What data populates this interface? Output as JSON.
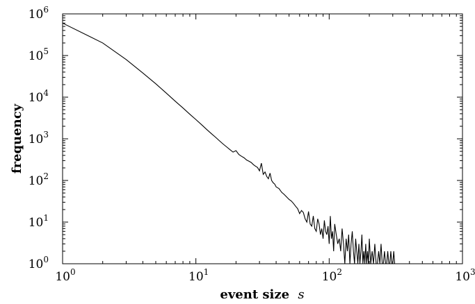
{
  "chart_data": {
    "type": "line",
    "title": "",
    "xlabel": "event size",
    "xlabel_var": "s",
    "ylabel": "frequency",
    "x_scale": "log",
    "y_scale": "log",
    "xlim": [
      1,
      1000
    ],
    "ylim": [
      1,
      1000000
    ],
    "grid": false,
    "legend": "none",
    "x_ticks": [
      {
        "base": "10",
        "exp": "0"
      },
      {
        "base": "10",
        "exp": "1"
      },
      {
        "base": "10",
        "exp": "2"
      },
      {
        "base": "10",
        "exp": "3"
      }
    ],
    "y_ticks": [
      {
        "base": "10",
        "exp": "0"
      },
      {
        "base": "10",
        "exp": "1"
      },
      {
        "base": "10",
        "exp": "2"
      },
      {
        "base": "10",
        "exp": "3"
      },
      {
        "base": "10",
        "exp": "4"
      },
      {
        "base": "10",
        "exp": "5"
      },
      {
        "base": "10",
        "exp": "6"
      }
    ],
    "line_color": "#000000",
    "series": [
      {
        "x": [
          1,
          2,
          3,
          4,
          5,
          6,
          7,
          8,
          9,
          10,
          11,
          12,
          13,
          14,
          15,
          16,
          17,
          18,
          19,
          20,
          21,
          22,
          23,
          24,
          25,
          26,
          27,
          28,
          29,
          30,
          31,
          32,
          33,
          34,
          35,
          36,
          37,
          38,
          39,
          40,
          42,
          44,
          46,
          48,
          50,
          52,
          54,
          56,
          58,
          60,
          62,
          64,
          66,
          68,
          70,
          72,
          74,
          76,
          78,
          80,
          82,
          84,
          86,
          88,
          90,
          92,
          94,
          96,
          98,
          100,
          102,
          104,
          106,
          108,
          110,
          113,
          116,
          119,
          122,
          125,
          128,
          131,
          134,
          137,
          140,
          143,
          146,
          149,
          152,
          155,
          158,
          161,
          164,
          167,
          170,
          173,
          176,
          179,
          182,
          185,
          188,
          191,
          194,
          197,
          200,
          205,
          210,
          215,
          220,
          225,
          230,
          235,
          240,
          245,
          250,
          255,
          260,
          265,
          270,
          275,
          280,
          285,
          290,
          295,
          300,
          305,
          310
        ],
        "y": [
          600000,
          200000,
          80000,
          38000,
          21000,
          12500,
          8000,
          5500,
          3900,
          2900,
          2200,
          1700,
          1350,
          1100,
          900,
          750,
          640,
          550,
          480,
          520,
          420,
          380,
          350,
          310,
          290,
          270,
          240,
          220,
          205,
          170,
          260,
          140,
          160,
          125,
          110,
          150,
          100,
          88,
          82,
          70,
          64,
          52,
          46,
          40,
          35,
          32,
          28,
          24,
          21,
          16,
          19,
          17,
          12,
          10,
          18,
          9,
          8,
          14,
          7,
          6,
          12,
          9,
          5,
          7,
          4,
          11,
          6,
          5,
          8,
          3,
          14,
          4,
          6,
          2,
          9,
          5,
          3,
          4,
          2,
          7,
          3,
          1,
          4,
          2,
          5,
          1,
          3,
          6,
          2,
          1,
          4,
          2,
          1,
          3,
          1,
          2,
          5,
          1,
          2,
          1,
          3,
          1,
          2,
          1,
          4,
          1,
          2,
          1,
          3,
          1,
          1,
          2,
          1,
          3,
          1,
          1,
          2,
          1,
          1,
          2,
          1,
          1,
          2,
          1,
          1,
          2,
          1
        ]
      }
    ]
  }
}
